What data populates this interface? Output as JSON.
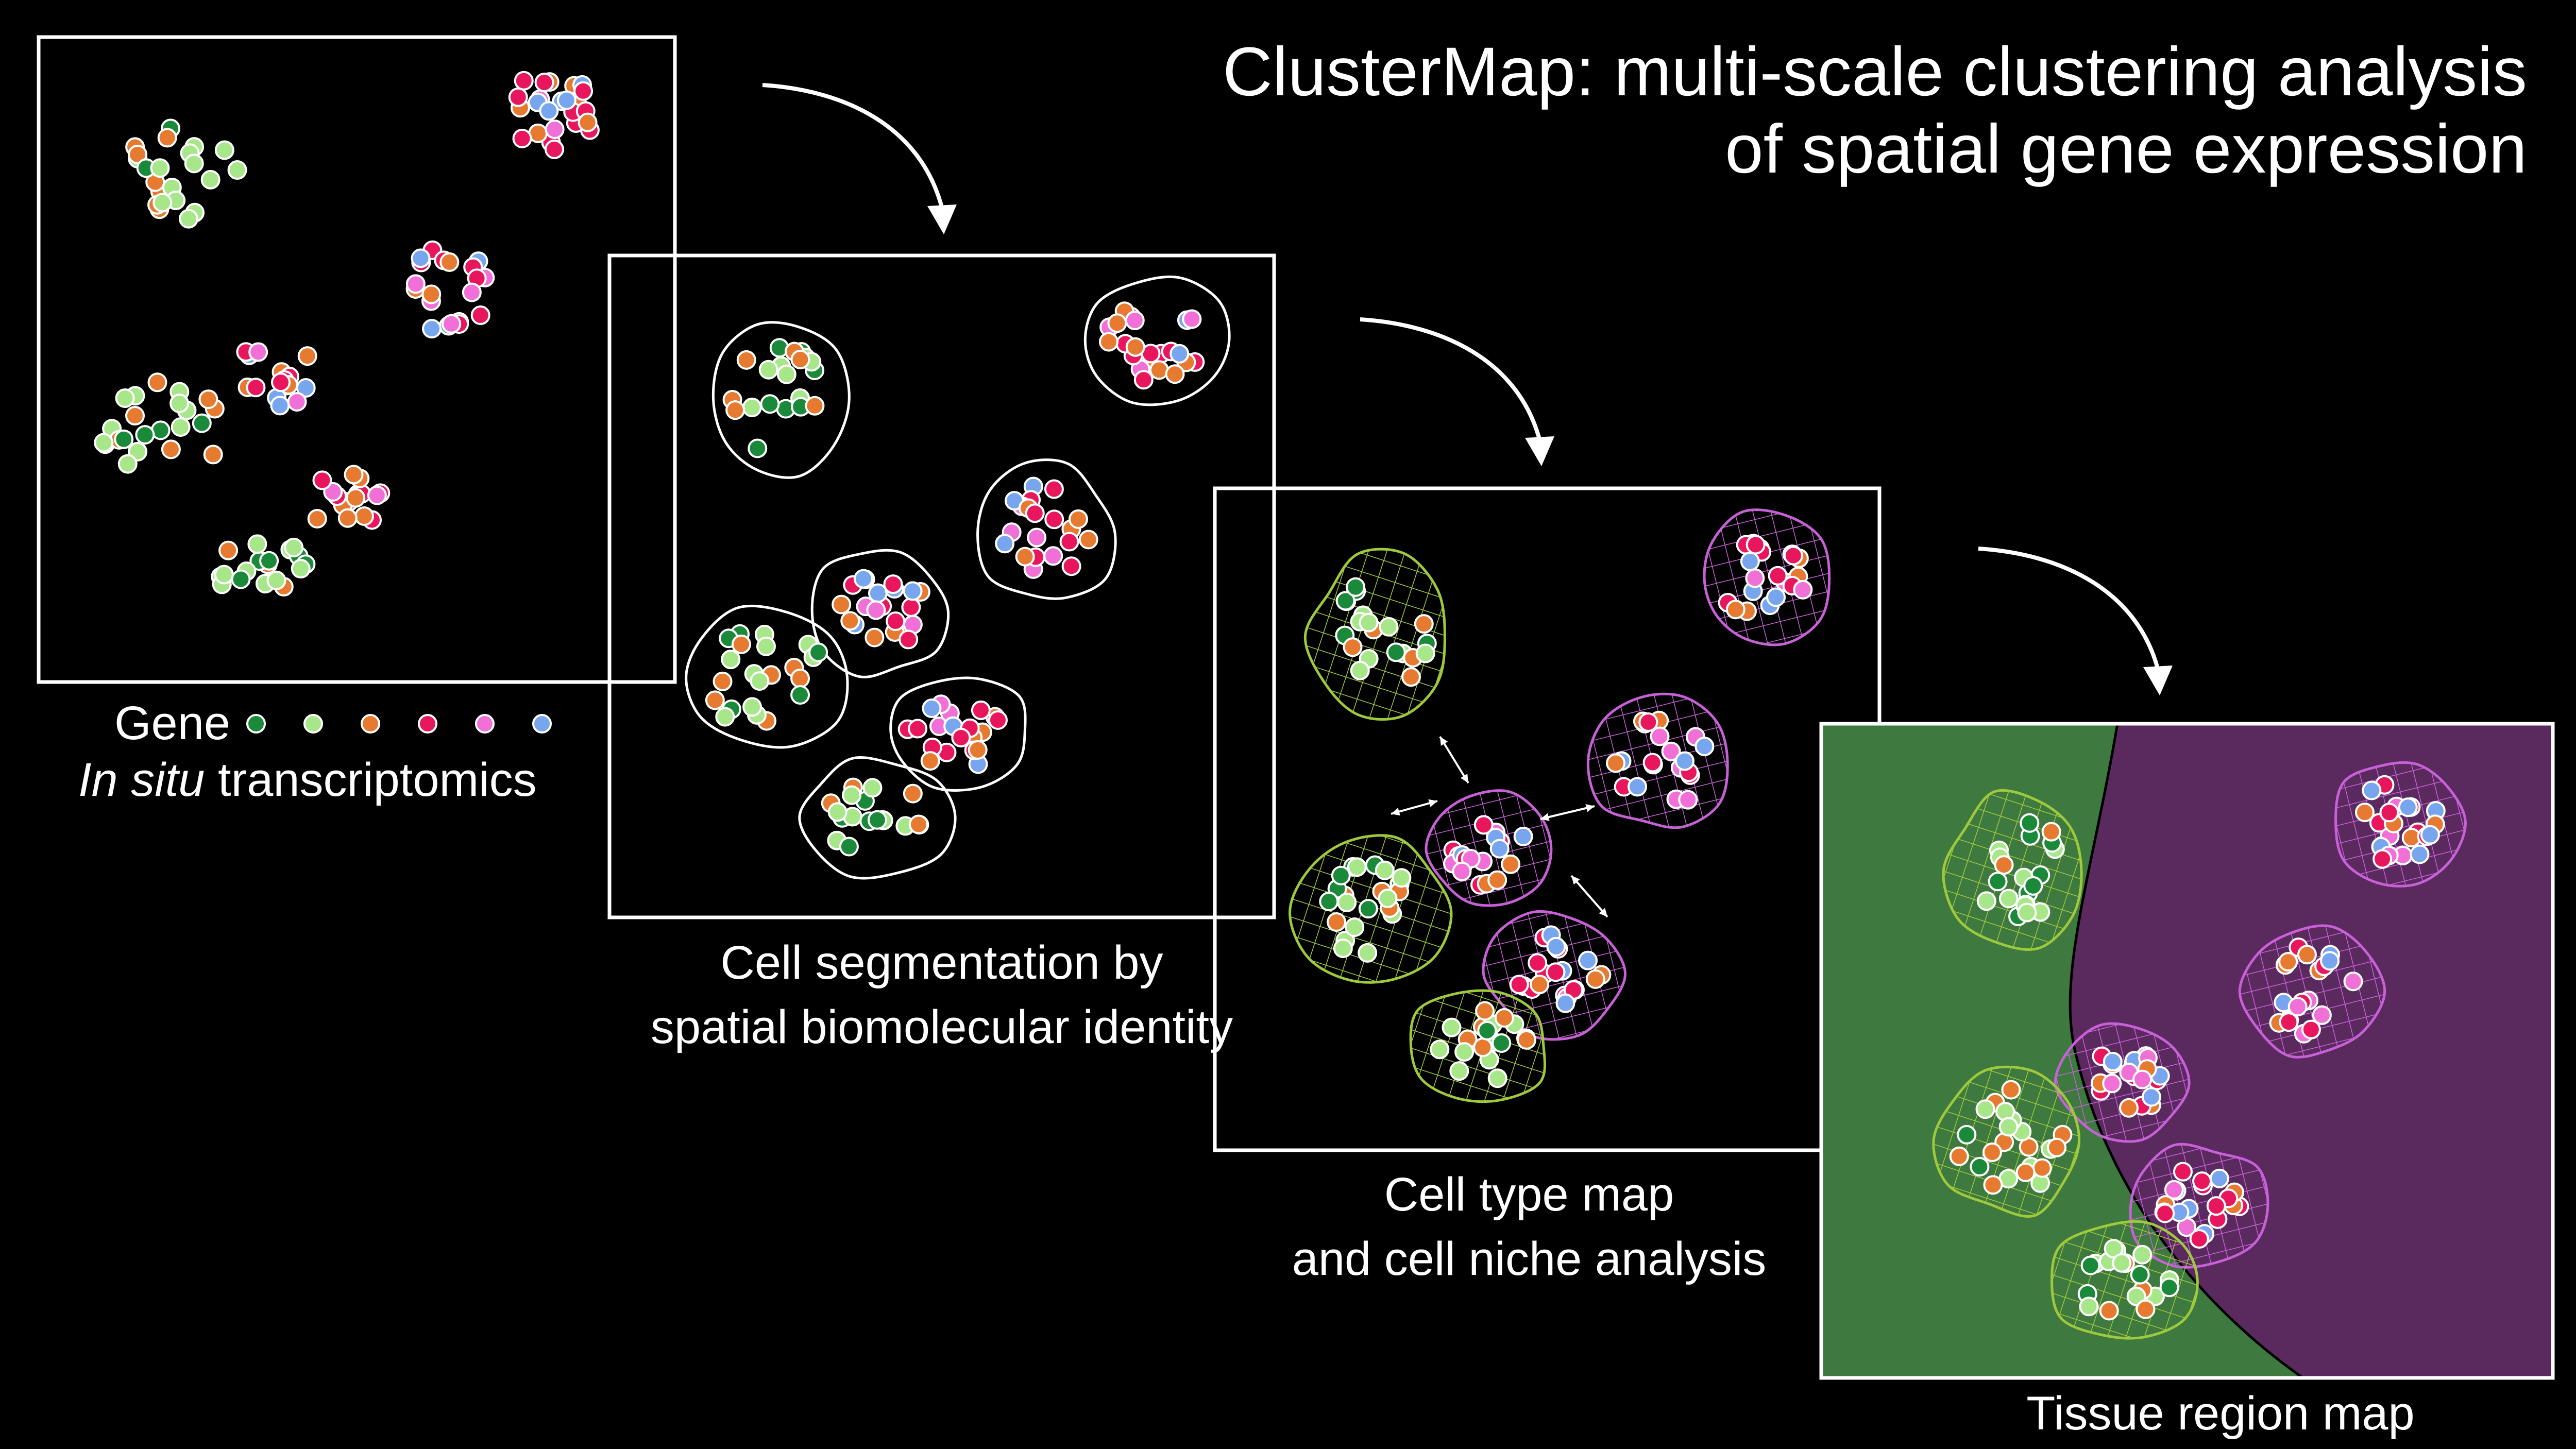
{
  "title": {
    "line1": "ClusterMap: multi-scale clustering analysis",
    "line2": "of spatial gene expression"
  },
  "legend": {
    "label": "Gene",
    "subtitle_italic": "In situ",
    "subtitle_rest": " transcriptomics"
  },
  "captions": {
    "panel2_line1": "Cell segmentation by",
    "panel2_line2": "spatial biomolecular identity",
    "panel3_line1": "Cell type map",
    "panel3_line2": "and cell niche analysis",
    "panel4": "Tissue region map"
  },
  "colors": {
    "background": "#000000",
    "gene_dark_green": "#1a8a3a",
    "gene_light_green": "#a8e68a",
    "gene_orange": "#e67a30",
    "gene_red": "#e8175d",
    "gene_pink": "#f070d8",
    "gene_blue": "#78a6ee",
    "celltype_green_mesh": "#9fc93c",
    "celltype_purple_mesh": "#c860d8",
    "region_green": "#3e7a40",
    "region_purple": "#5a2a5e"
  },
  "icons": [
    "arrow-curved-down-icon"
  ]
}
